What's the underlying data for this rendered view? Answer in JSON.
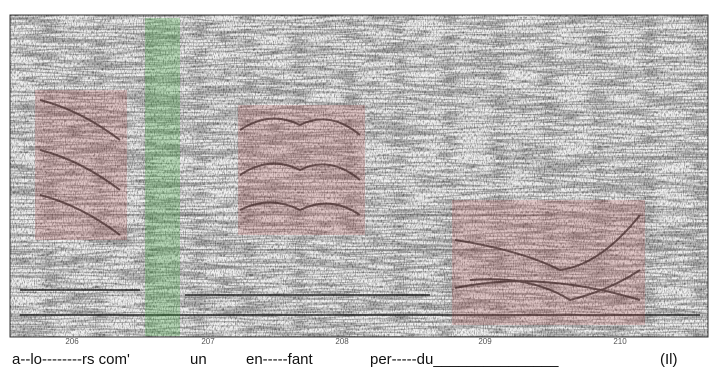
{
  "axis": {
    "ticks": [
      "206",
      "207",
      "208",
      "209",
      "210"
    ]
  },
  "lyrics": [
    "a--lo--------rs com'",
    "un",
    "en-----fant",
    "per-----du_______________",
    "(Il)"
  ]
}
